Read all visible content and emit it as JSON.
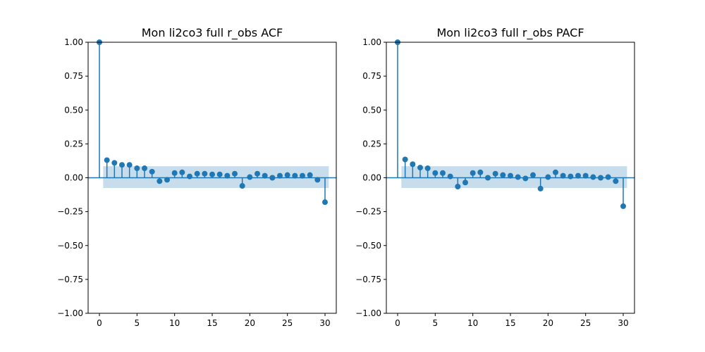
{
  "chart_data": [
    {
      "type": "stem",
      "title": "Mon li2co3 full r_obs ACF",
      "xlabel": "",
      "ylabel": "",
      "xlim": [
        -1.5,
        31.5
      ],
      "ylim": [
        -1.0,
        1.0
      ],
      "x_ticks": [
        0,
        5,
        10,
        15,
        20,
        25,
        30
      ],
      "x_tick_labels": [
        "0",
        "5",
        "10",
        "15",
        "20",
        "25",
        "30"
      ],
      "y_ticks": [
        -1.0,
        -0.75,
        -0.5,
        -0.25,
        0.0,
        0.25,
        0.5,
        0.75,
        1.0
      ],
      "y_tick_labels": [
        "−1.00",
        "−0.75",
        "−0.50",
        "−0.25",
        "0.00",
        "0.25",
        "0.50",
        "0.75",
        "1.00"
      ],
      "lags": [
        0,
        1,
        2,
        3,
        4,
        5,
        6,
        7,
        8,
        9,
        10,
        11,
        12,
        13,
        14,
        15,
        16,
        17,
        18,
        19,
        20,
        21,
        22,
        23,
        24,
        25,
        26,
        27,
        28,
        29,
        30
      ],
      "values": [
        1.0,
        0.13,
        0.11,
        0.095,
        0.095,
        0.07,
        0.07,
        0.045,
        -0.025,
        -0.015,
        0.035,
        0.04,
        0.01,
        0.03,
        0.03,
        0.025,
        0.025,
        0.015,
        0.03,
        -0.06,
        0.005,
        0.03,
        0.015,
        0.0,
        0.015,
        0.02,
        0.015,
        0.015,
        0.02,
        -0.015,
        -0.18
      ],
      "confidence_band": {
        "lags": [
          1,
          30
        ],
        "upper": [
          0.085,
          0.085
        ],
        "lower": [
          -0.075,
          -0.075
        ]
      },
      "grid": false,
      "colors": {
        "stem": "#1f77b4",
        "band": "#1f77b4"
      }
    },
    {
      "type": "stem",
      "title": "Mon li2co3 full r_obs PACF",
      "xlabel": "",
      "ylabel": "",
      "xlim": [
        -1.5,
        31.5
      ],
      "ylim": [
        -1.0,
        1.0
      ],
      "x_ticks": [
        0,
        5,
        10,
        15,
        20,
        25,
        30
      ],
      "x_tick_labels": [
        "0",
        "5",
        "10",
        "15",
        "20",
        "25",
        "30"
      ],
      "y_ticks": [
        -1.0,
        -0.75,
        -0.5,
        -0.25,
        0.0,
        0.25,
        0.5,
        0.75,
        1.0
      ],
      "y_tick_labels": [
        "−1.00",
        "−0.75",
        "−0.50",
        "−0.25",
        "0.00",
        "0.25",
        "0.50",
        "0.75",
        "1.00"
      ],
      "lags": [
        0,
        1,
        2,
        3,
        4,
        5,
        6,
        7,
        8,
        9,
        10,
        11,
        12,
        13,
        14,
        15,
        16,
        17,
        18,
        19,
        20,
        21,
        22,
        23,
        24,
        25,
        26,
        27,
        28,
        29,
        30
      ],
      "values": [
        1.0,
        0.135,
        0.1,
        0.075,
        0.07,
        0.035,
        0.035,
        0.01,
        -0.065,
        -0.035,
        0.035,
        0.04,
        0.0,
        0.03,
        0.02,
        0.015,
        0.005,
        -0.005,
        0.02,
        -0.08,
        0.005,
        0.04,
        0.015,
        0.01,
        0.015,
        0.015,
        0.005,
        0.0,
        0.005,
        -0.025,
        -0.21
      ],
      "confidence_band": {
        "lags": [
          1,
          30
        ],
        "upper": [
          0.085,
          0.085
        ],
        "lower": [
          -0.075,
          -0.075
        ]
      },
      "grid": false,
      "colors": {
        "stem": "#1f77b4",
        "band": "#1f77b4"
      }
    }
  ]
}
